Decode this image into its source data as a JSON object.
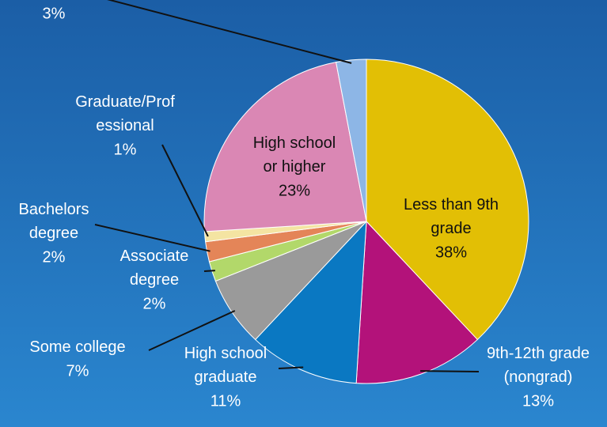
{
  "chart_data": {
    "type": "pie",
    "categories": [
      "Less than 9th\ngrade",
      "9th-12th grade\n(nongrad)",
      "High school\ngraduate",
      "Some college",
      "Associate\ndegree",
      "Bachelors\ndegree",
      "Graduate/Prof\nessional",
      "High school\nor higher",
      null
    ],
    "values": [
      38,
      13,
      11,
      7,
      2,
      2,
      1,
      23,
      3
    ],
    "value_labels": [
      "38%",
      "13%",
      "11%",
      "7%",
      "2%",
      "2%",
      "1%",
      "23%",
      "3%"
    ],
    "colors": [
      "#e2bf05",
      "#b3127a",
      "#0a78c2",
      "#9a9a9a",
      "#b2d86a",
      "#e48558",
      "#f4e4a2",
      "#da87b4",
      "#8db6e6"
    ]
  }
}
